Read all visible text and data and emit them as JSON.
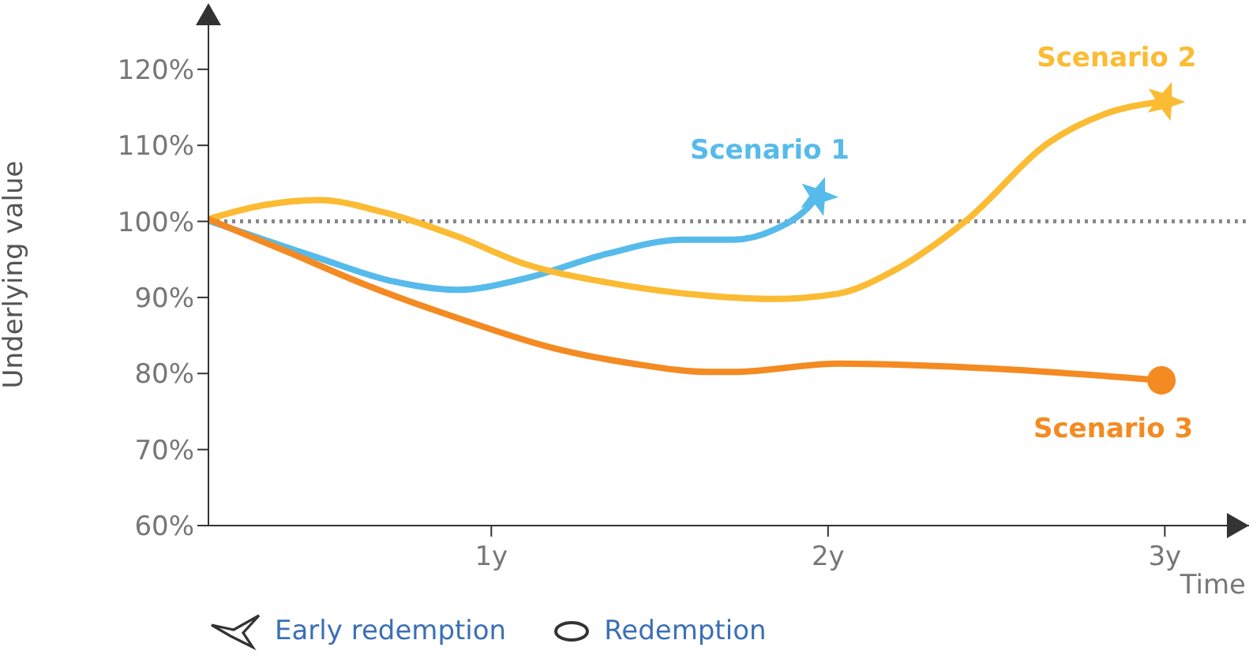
{
  "chart_data": {
    "type": "line",
    "xlabel": "Time",
    "ylabel": "Underlying value",
    "xlim": [
      0.16,
      3.25
    ],
    "xticks": [
      {
        "value": 1,
        "label": "1y"
      },
      {
        "value": 2,
        "label": "2y"
      },
      {
        "value": 3,
        "label": "3y"
      }
    ],
    "ylim": [
      60,
      126
    ],
    "yticks": [
      {
        "value": 60,
        "label": "60%"
      },
      {
        "value": 70,
        "label": "70%"
      },
      {
        "value": 80,
        "label": "80%"
      },
      {
        "value": 90,
        "label": "90%"
      },
      {
        "value": 100,
        "label": "100%"
      },
      {
        "value": 110,
        "label": "110%"
      },
      {
        "value": 120,
        "label": "120%"
      }
    ],
    "line_style": "solid",
    "ref_lines": [
      {
        "axis": "y",
        "value": 100,
        "color": "#888888",
        "line_style": "dotted"
      }
    ],
    "series": [
      {
        "name": "Scenario 1",
        "color": "#56bbea",
        "x": [
          0.16,
          0.48,
          0.71,
          0.9,
          1.1,
          1.34,
          1.57,
          1.72,
          1.84,
          1.94,
          1.97
        ],
        "values": [
          100.1,
          95.3,
          92.1,
          91.0,
          92.5,
          95.7,
          97.6,
          97.6,
          98.9,
          101.8,
          103.3
        ]
      },
      {
        "name": "Scenario 2",
        "color": "#fbbb33",
        "x": [
          0.16,
          0.32,
          0.49,
          0.68,
          0.9,
          1.1,
          1.34,
          1.65,
          1.84,
          2.03,
          2.19,
          2.41,
          2.66,
          2.82,
          3.0
        ],
        "values": [
          100.3,
          102.1,
          102.8,
          101.2,
          98.0,
          94.4,
          92.0,
          90.2,
          89.8,
          90.5,
          93.4,
          100.1,
          110.5,
          114.1,
          115.8
        ]
      },
      {
        "name": "Scenario 3",
        "color": "#f48a22",
        "x": [
          0.16,
          0.4,
          0.63,
          0.9,
          1.18,
          1.42,
          1.65,
          1.72,
          2.03,
          2.51,
          2.99
        ],
        "values": [
          100.3,
          95.9,
          91.6,
          87.3,
          83.4,
          81.3,
          80.2,
          80.2,
          81.3,
          80.6,
          79.1
        ]
      }
    ],
    "annotations": [
      "Early redemption",
      "Redemption"
    ]
  }
}
